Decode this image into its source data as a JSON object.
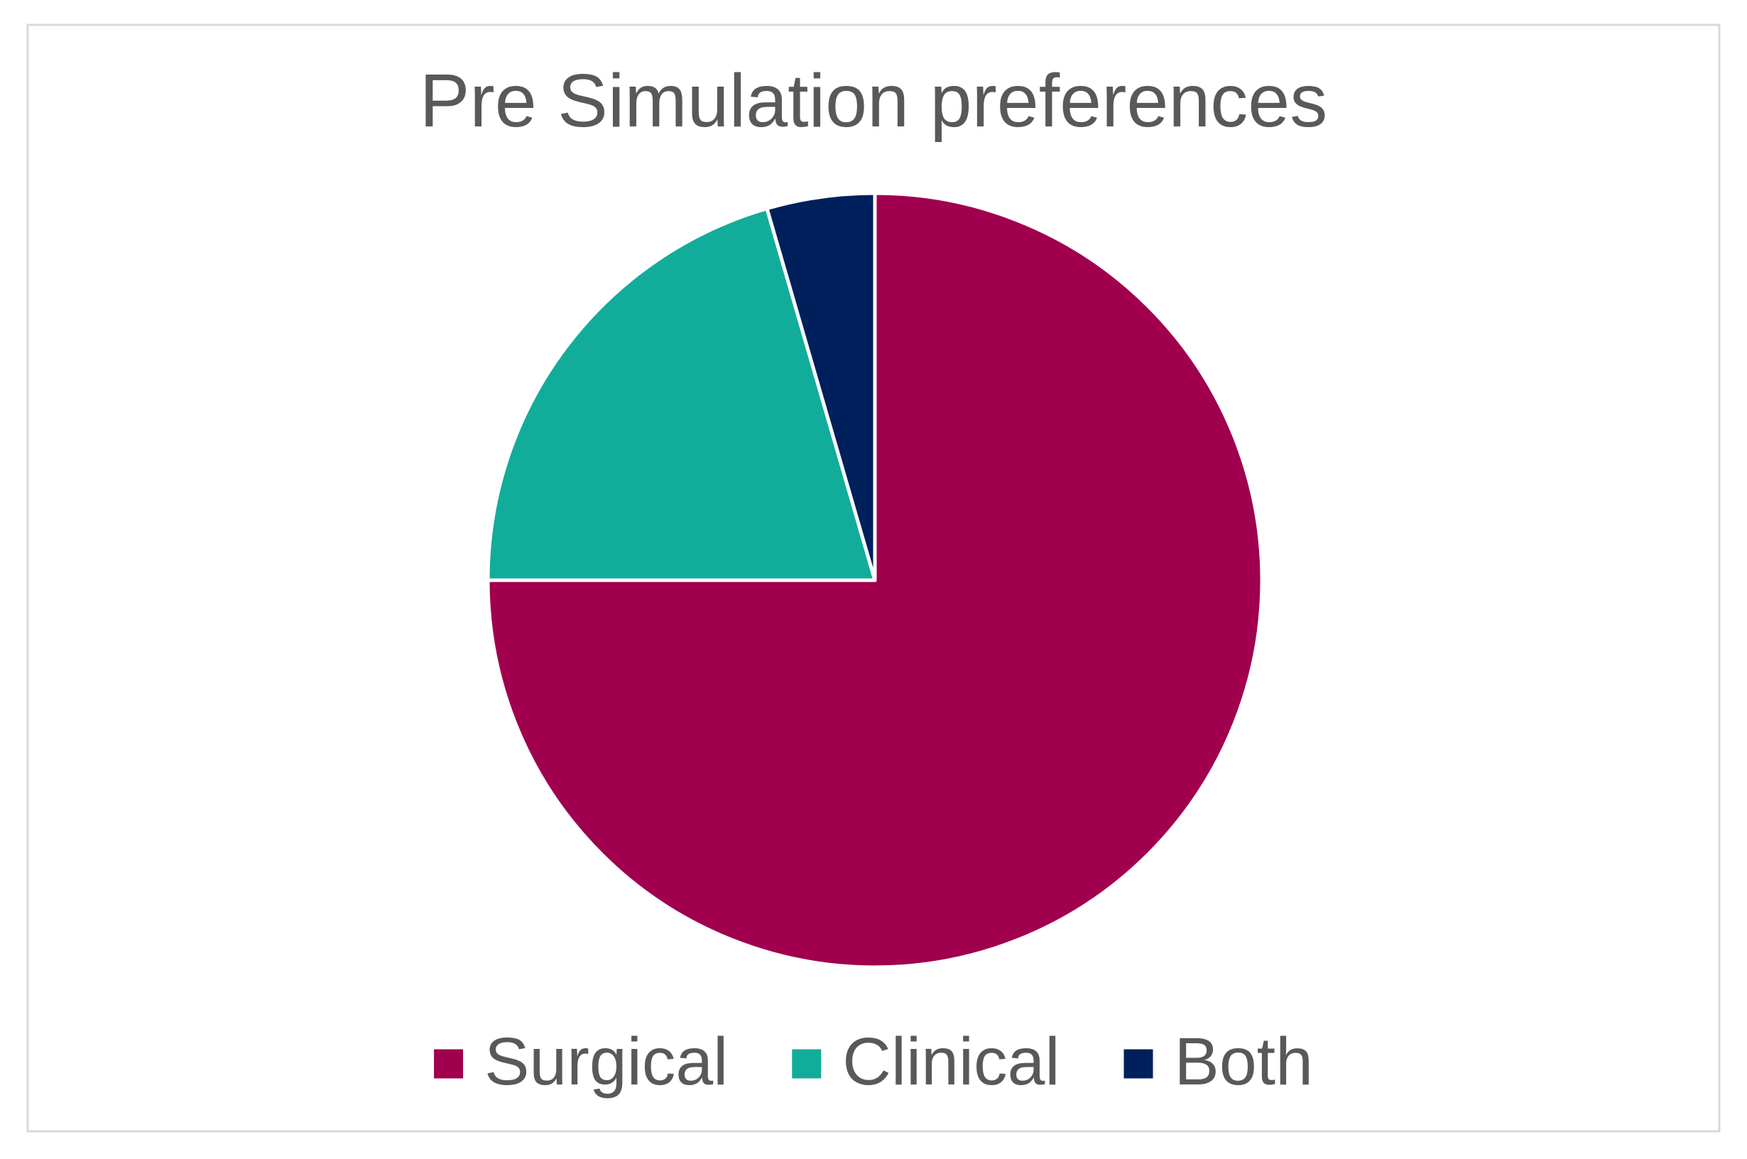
{
  "chart_data": {
    "type": "pie",
    "title": "Pre Simulation preferences",
    "categories": [
      "Surgical",
      "Clinical",
      "Both"
    ],
    "values": [
      75,
      20.5,
      4.5
    ],
    "colors": [
      "#a0004e",
      "#12ac9a",
      "#00205b"
    ],
    "legend": "bottom"
  }
}
